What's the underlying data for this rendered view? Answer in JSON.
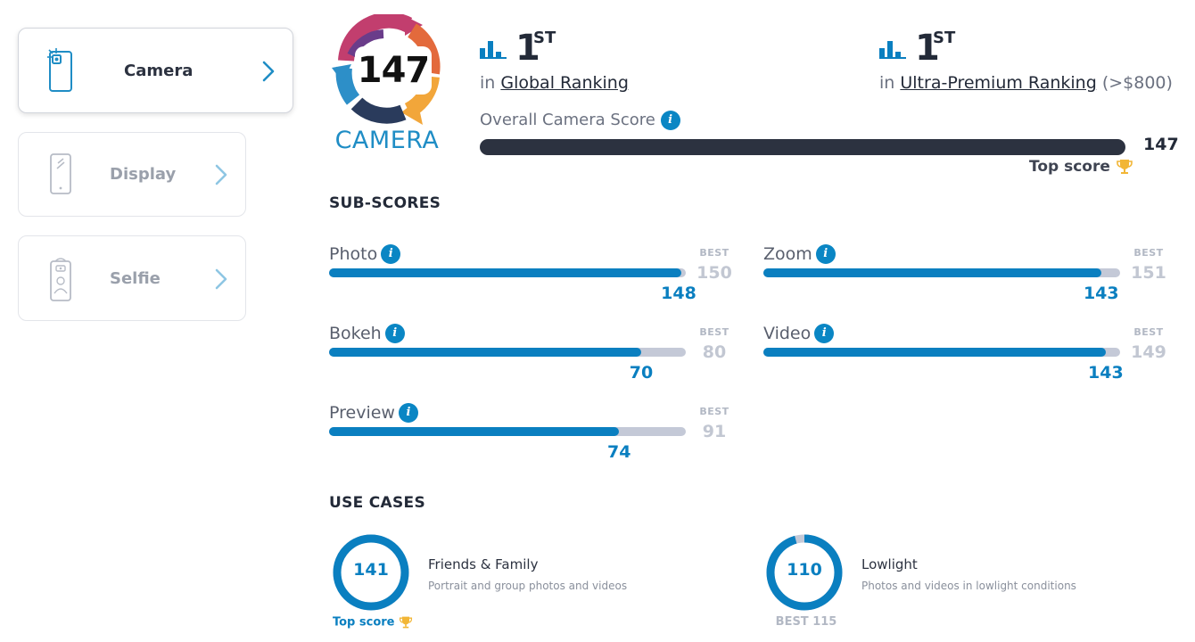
{
  "sidebar": {
    "items": [
      {
        "label": "Camera",
        "active": true,
        "icon": "camera-phone-icon"
      },
      {
        "label": "Display",
        "active": false,
        "icon": "display-phone-icon"
      },
      {
        "label": "Selfie",
        "active": false,
        "icon": "selfie-phone-icon"
      }
    ]
  },
  "badge": {
    "score": "147",
    "label": "CAMERA"
  },
  "rankings": [
    {
      "position": "1",
      "suffix": "ST",
      "prefix": "in",
      "link": "Global Ranking",
      "extra": ""
    },
    {
      "position": "1",
      "suffix": "ST",
      "prefix": "in",
      "link": "Ultra-Premium Ranking",
      "extra": "(>$800)"
    }
  ],
  "overall": {
    "label": "Overall Camera Score",
    "value": "147",
    "fraction": 1.0,
    "top_label": "Top score"
  },
  "subscores_title": "SUB-SCORES",
  "subscores": [
    {
      "label": "Photo",
      "value": 148,
      "best": 150,
      "best_label": "BEST"
    },
    {
      "label": "Zoom",
      "value": 143,
      "best": 151,
      "best_label": "BEST"
    },
    {
      "label": "Bokeh",
      "value": 70,
      "best": 80,
      "best_label": "BEST"
    },
    {
      "label": "Video",
      "value": 143,
      "best": 149,
      "best_label": "BEST"
    },
    {
      "label": "Preview",
      "value": 74,
      "best": 91,
      "best_label": "BEST"
    }
  ],
  "use_cases_title": "USE CASES",
  "use_cases": [
    {
      "score": "141",
      "fraction": 1.0,
      "title": "Friends & Family",
      "desc": "Portrait and group photos and videos",
      "foot": "Top score",
      "foot_type": "top"
    },
    {
      "score": "110",
      "fraction": 0.957,
      "title": "Lowlight",
      "desc": "Photos and videos in lowlight conditions",
      "foot": "BEST 115",
      "foot_type": "best"
    }
  ],
  "colors": {
    "accent": "#0a7fc0",
    "track": "#c4c9d7",
    "dark": "#2c3240",
    "trophy": "#f2b636"
  }
}
